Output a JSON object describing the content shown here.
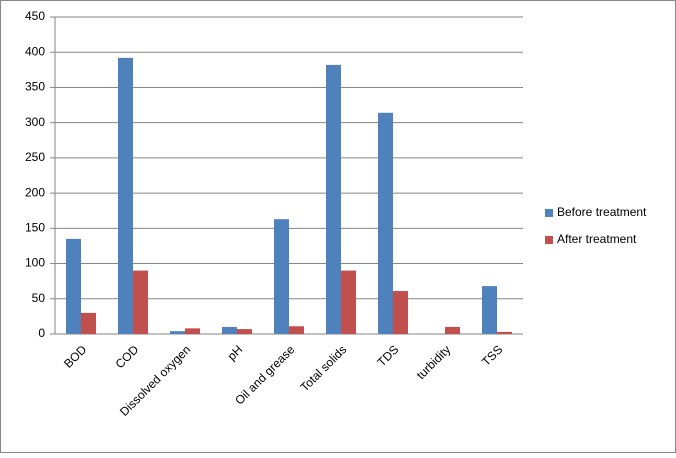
{
  "chart_data": {
    "type": "bar",
    "categories": [
      "BOD",
      "COD",
      "Dissolved oxygen",
      "pH",
      "Oil and grease",
      "Total solids",
      "TDS",
      "turbidity",
      "TSS"
    ],
    "series": [
      {
        "name": "Before treatment",
        "color": "#4f81bd",
        "values": [
          135,
          392,
          4,
          10,
          163,
          382,
          314,
          0,
          68
        ]
      },
      {
        "name": "After treatment",
        "color": "#c0504d",
        "values": [
          30,
          90,
          8,
          7,
          11,
          90,
          61,
          10,
          3
        ]
      }
    ],
    "ylim": [
      0,
      450
    ],
    "yticks": [
      0,
      50,
      100,
      150,
      200,
      250,
      300,
      350,
      400,
      450
    ],
    "grid": true,
    "legend": "right"
  }
}
